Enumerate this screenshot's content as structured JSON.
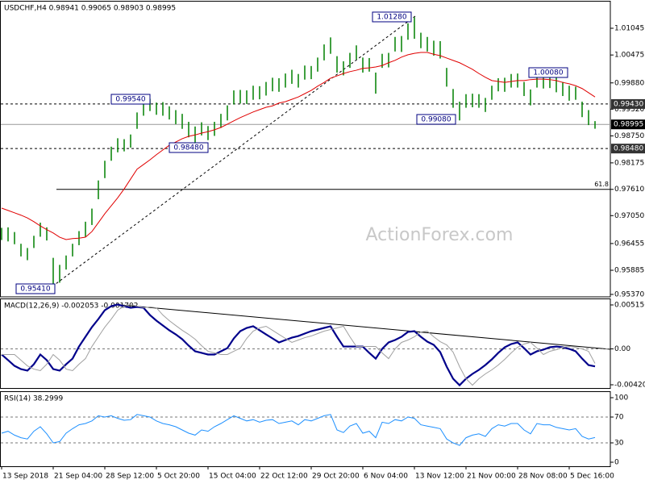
{
  "watermark": "ActionForex.com",
  "chart_data": [
    {
      "type": "ohlc",
      "title": "USDCHF,H4  0.98941 0.99065 0.98903 0.98995",
      "color": "#008000",
      "categories": [
        "13 Sep 2018",
        null,
        null,
        null,
        null,
        null,
        null,
        null,
        "21 Sep 04:00",
        null,
        null,
        null,
        null,
        null,
        null,
        null,
        "28 Sep 12:00",
        null,
        null,
        null,
        null,
        null,
        null,
        null,
        "5 Oct 20:00",
        null,
        null,
        null,
        null,
        null,
        null,
        null,
        "15 Oct 04:00",
        null,
        null,
        null,
        null,
        null,
        null,
        null,
        "22 Oct 12:00",
        null,
        null,
        null,
        null,
        null,
        null,
        null,
        "29 Oct 20:00",
        null,
        null,
        null,
        null,
        null,
        null,
        null,
        "6 Nov 04:00",
        null,
        null,
        null,
        null,
        null,
        null,
        null,
        "13 Nov 12:00",
        null,
        null,
        null,
        null,
        null,
        null,
        null,
        "21 Nov 00:00",
        null,
        null,
        null,
        null,
        null,
        null,
        null,
        "28 Nov 08:00",
        null,
        null,
        null,
        null,
        null,
        null,
        null,
        "5 Dec 16:00",
        null,
        null,
        null,
        null
      ],
      "high": [
        0.9679,
        0.968,
        0.967,
        0.9645,
        0.9636,
        0.9662,
        0.969,
        0.968,
        0.9615,
        0.96,
        0.962,
        0.9645,
        0.9672,
        0.9692,
        0.972,
        0.978,
        0.9822,
        0.9852,
        0.987,
        0.9868,
        0.9878,
        0.9925,
        0.9948,
        0.9954,
        0.9946,
        0.9947,
        0.9938,
        0.993,
        0.9922,
        0.9905,
        0.9895,
        0.9904,
        0.9896,
        0.9905,
        0.9922,
        0.994,
        0.9972,
        0.9973,
        0.9972,
        0.9982,
        0.9981,
        0.999,
        0.9999,
        0.9998,
        1.0008,
        1.0016,
        1.0007,
        1.0025,
        1.0024,
        1.0042,
        1.007,
        1.0085,
        1.0045,
        1.0034,
        1.0052,
        1.0068,
        1.0042,
        1.0041,
        1.001,
        1.005,
        1.0052,
        1.0086,
        1.0088,
        1.0115,
        1.0128,
        1.0095,
        1.0086,
        1.0078,
        1.0077,
        1.002,
        0.9975,
        0.9948,
        0.9964,
        0.9965,
        0.9964,
        0.9956,
        0.9982,
        0.9998,
        0.9999,
        1.0007,
        1.0008,
        0.999,
        0.9974,
        1.0008,
        1.0008,
        1.0007,
        1.0,
        0.999,
        0.9982,
        0.998,
        0.9948,
        0.993,
        0.99065
      ],
      "low": [
        0.9653,
        0.965,
        0.9644,
        0.9618,
        0.961,
        0.9636,
        0.966,
        0.9652,
        0.9541,
        0.9562,
        0.959,
        0.9618,
        0.9642,
        0.966,
        0.9685,
        0.974,
        0.9785,
        0.9822,
        0.984,
        0.9842,
        0.985,
        0.989,
        0.9918,
        0.9928,
        0.992,
        0.9918,
        0.991,
        0.99,
        0.989,
        0.9872,
        0.9848,
        0.9876,
        0.9866,
        0.9875,
        0.9892,
        0.9908,
        0.9942,
        0.9944,
        0.9943,
        0.9952,
        0.9953,
        0.9961,
        0.997,
        0.9969,
        0.9978,
        0.9986,
        0.9978,
        0.9995,
        0.9996,
        1.0012,
        1.0036,
        1.005,
        1.001,
        1.0004,
        1.002,
        1.0038,
        1.001,
        1.0012,
        0.9965,
        1.002,
        1.0021,
        1.0055,
        1.0054,
        1.008,
        1.0082,
        1.0062,
        1.0055,
        1.0046,
        1.004,
        0.998,
        0.9935,
        0.9908,
        0.9935,
        0.9936,
        0.9935,
        0.9926,
        0.9952,
        0.997,
        0.9969,
        0.9978,
        0.9978,
        0.996,
        0.994,
        0.9978,
        0.9976,
        0.9977,
        0.9968,
        0.996,
        0.995,
        0.9952,
        0.9915,
        0.9898,
        0.98903
      ],
      "overlay": {
        "color": "#e00000",
        "values": [
          0.9721,
          0.9716,
          0.9711,
          0.9706,
          0.97,
          0.9692,
          0.9683,
          0.9675,
          0.9668,
          0.9659,
          0.9654,
          0.9656,
          0.9657,
          0.9659,
          0.9671,
          0.969,
          0.9709,
          0.9726,
          0.9743,
          0.9762,
          0.9783,
          0.9804,
          0.9814,
          0.9824,
          0.9835,
          0.9845,
          0.9855,
          0.9862,
          0.9869,
          0.9874,
          0.9877,
          0.9881,
          0.9884,
          0.9888,
          0.9893,
          0.99,
          0.9907,
          0.9914,
          0.992,
          0.9926,
          0.9931,
          0.9936,
          0.9939,
          0.9945,
          0.9948,
          0.9953,
          0.9958,
          0.9965,
          0.9972,
          0.9981,
          0.9989,
          0.9998,
          1.0003,
          1.0008,
          1.0012,
          1.0015,
          1.0019,
          1.002,
          1.0022,
          1.0025,
          1.0031,
          1.0036,
          1.0043,
          1.0048,
          1.0051,
          1.0053,
          1.0053,
          1.0049,
          1.0046,
          1.0041,
          1.0036,
          1.0031,
          1.0024,
          1.0017,
          1.0008,
          1.0,
          0.9993,
          0.9991,
          0.9989,
          0.9991,
          0.9993,
          0.9993,
          0.9995,
          0.9996,
          0.9996,
          0.9995,
          0.9993,
          0.9989,
          0.9986,
          0.9982,
          0.9976,
          0.9967,
          0.9958
        ]
      },
      "ylim": [
        0.95318,
        1.01613
      ],
      "yticks": [
        {
          "value": 1.01045,
          "label": "1.01045"
        },
        {
          "value": 1.00475,
          "label": "1.00475"
        },
        {
          "value": 0.9988,
          "label": "0.99880"
        },
        {
          "value": 0.9932,
          "label": "0.99320"
        },
        {
          "value": 0.9875,
          "label": "0.98750"
        },
        {
          "value": 0.98175,
          "label": "0.98175"
        },
        {
          "value": 0.9761,
          "label": "0.97610"
        },
        {
          "value": 0.9705,
          "label": "0.97050"
        },
        {
          "value": 0.96455,
          "label": "0.96455"
        },
        {
          "value": 0.95885,
          "label": "0.95885"
        },
        {
          "value": 0.9537,
          "label": "0.95370"
        }
      ],
      "levels": [
        {
          "value": 0.9943,
          "label": "0.99430",
          "style": "dashed"
        },
        {
          "value": 0.98995,
          "label": "0.98995",
          "style": "solid"
        },
        {
          "value": 0.9848,
          "label": "0.98480",
          "style": "dashed"
        },
        {
          "value": 0.9761,
          "label": "61.8",
          "style": "fib"
        }
      ],
      "annotations": [
        "0.95410",
        "0.99540",
        "0.98480",
        "1.01280",
        "0.99080",
        "1.00080"
      ]
    },
    {
      "type": "line",
      "title": "MACD(12,26,9) -0.002053 -0.001702",
      "series": [
        {
          "color": "#00008b",
          "width": 2.2,
          "values": [
            -0.00066,
            -0.00132,
            -0.00199,
            -0.00237,
            -0.00255,
            -0.0018,
            -0.00066,
            -0.00132,
            -0.00237,
            -0.00255,
            -0.0018,
            -0.00114,
            0.00028,
            0.00142,
            0.00255,
            0.0035,
            0.00454,
            0.00501,
            0.0052,
            0.00501,
            0.00482,
            0.00492,
            0.00482,
            0.00397,
            0.00331,
            0.00274,
            0.00218,
            0.0017,
            0.00114,
            0.00038,
            -0.00028,
            -0.00047,
            -0.00066,
            -0.00066,
            -0.00028,
            9e-05,
            0.00123,
            0.00208,
            0.00246,
            0.00265,
            0.00218,
            0.0017,
            0.00123,
            0.00076,
            0.00104,
            0.00132,
            0.00151,
            0.0018,
            0.00208,
            0.00227,
            0.00246,
            0.00265,
            0.00142,
            0.00028,
            0.00028,
            0.00028,
            0.00028,
            -0.00047,
            -0.00114,
            0,
            0.00076,
            0.00104,
            0.00142,
            0.00199,
            0.00208,
            0.00142,
            0.00085,
            0.00047,
            -0.00038,
            -0.00208,
            -0.0035,
            -0.00426,
            -0.0035,
            -0.00293,
            -0.00246,
            -0.00189,
            -0.00123,
            -0.00047,
            0.00019,
            0.00057,
            0.00076,
            9e-05,
            -0.00066,
            -0.00028,
            -9e-05,
            0.00019,
            0.00028,
            0.00019,
            0,
            -0.00028,
            -0.00114,
            -0.0019,
            -0.00205
          ]
        },
        {
          "color": "#a0a0a0",
          "width": 1,
          "values": [
            -0.00066,
            -0.00066,
            -0.00066,
            -0.00132,
            -0.00199,
            -0.00237,
            -0.00255,
            -0.0018,
            -0.00066,
            -0.00132,
            -0.00237,
            -0.00255,
            -0.0018,
            -0.00114,
            0.00028,
            0.00142,
            0.00255,
            0.0035,
            0.00454,
            0.00501,
            0.0052,
            0.00501,
            0.00482,
            0.00492,
            0.00482,
            0.00397,
            0.00331,
            0.00274,
            0.00218,
            0.0017,
            0.00114,
            0.00038,
            -0.00028,
            -0.00047,
            -0.00066,
            -0.00066,
            -0.00028,
            9e-05,
            0.00123,
            0.00208,
            0.00246,
            0.00265,
            0.00218,
            0.0017,
            0.00123,
            0.00076,
            0.00104,
            0.00132,
            0.00151,
            0.0018,
            0.00208,
            0.00227,
            0.00246,
            0.00265,
            0.00142,
            0.00028,
            0.00028,
            0.00028,
            0.00028,
            -0.00047,
            -0.00114,
            0,
            0.00076,
            0.00104,
            0.00142,
            0.00199,
            0.00208,
            0.00142,
            0.00085,
            0.00047,
            -0.00038,
            -0.00208,
            -0.0035,
            -0.00426,
            -0.0035,
            -0.00293,
            -0.00246,
            -0.00189,
            -0.00123,
            -0.00047,
            0.00019,
            0.00057,
            0.00076,
            9e-05,
            -0.00066,
            -0.00028,
            -9e-05,
            0.00019,
            0.00028,
            0.00019,
            0,
            -0.00028,
            -0.0017
          ]
        }
      ],
      "ylim": [
        -0.004587,
        0.005818
      ],
      "yticks": [
        0.005156,
        {
          "value": 0,
          "label": "0.00"
        },
        -0.004209
      ],
      "dashed_levels": [
        0
      ]
    },
    {
      "type": "line",
      "title": "RSI(14) 38.2999",
      "series": [
        {
          "color": "#1e90ff",
          "width": 1,
          "values": [
            45,
            48,
            42,
            38,
            36,
            48,
            55,
            44,
            30,
            32,
            45,
            52,
            58,
            60,
            64,
            72,
            70,
            72,
            68,
            65,
            66,
            74,
            72,
            70,
            64,
            60,
            58,
            55,
            50,
            45,
            42,
            50,
            48,
            55,
            60,
            66,
            72,
            68,
            64,
            66,
            62,
            65,
            66,
            60,
            62,
            64,
            58,
            66,
            64,
            68,
            72,
            74,
            50,
            46,
            56,
            60,
            45,
            48,
            38,
            62,
            60,
            66,
            64,
            70,
            68,
            58,
            56,
            54,
            52,
            36,
            30,
            26,
            38,
            42,
            44,
            40,
            52,
            58,
            56,
            60,
            60,
            50,
            44,
            60,
            58,
            58,
            54,
            52,
            50,
            52,
            40,
            36,
            38.2999
          ]
        }
      ],
      "ylim": [
        -6.25,
        108.75
      ],
      "yticks": [
        100,
        70,
        30,
        0
      ],
      "dashed_levels": [
        70,
        30
      ]
    }
  ]
}
